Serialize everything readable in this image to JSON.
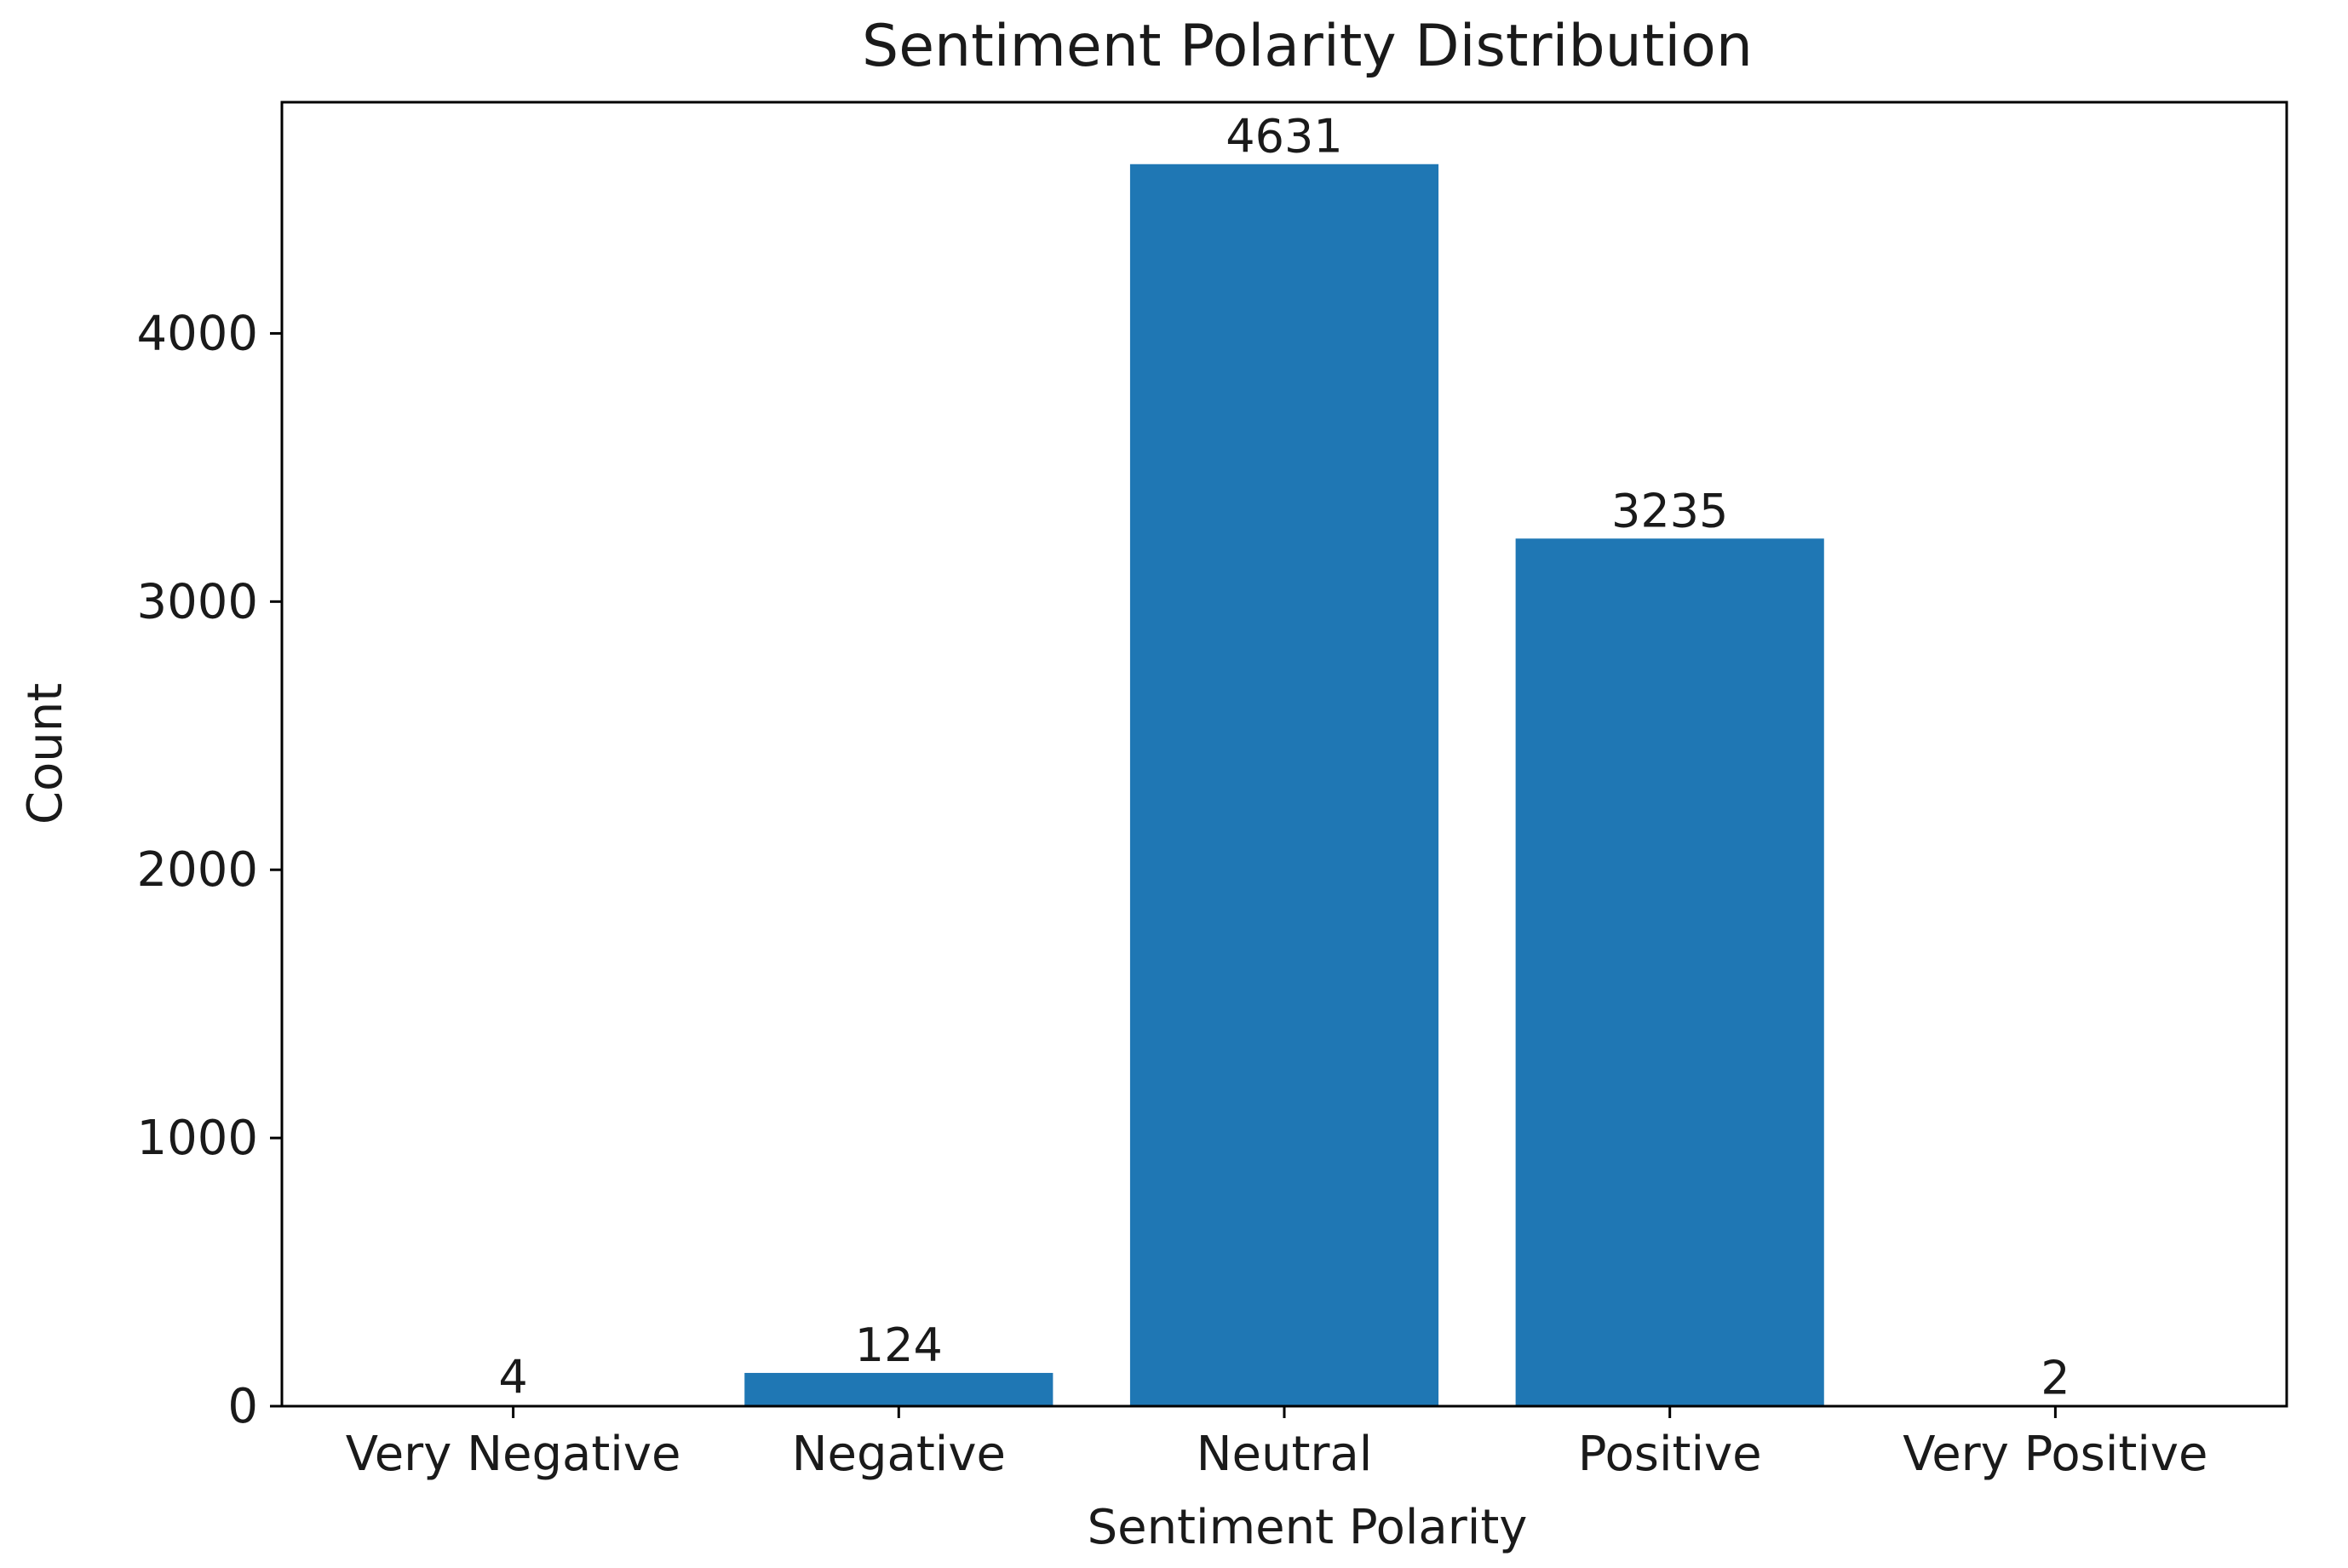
{
  "chart_data": {
    "type": "bar",
    "title": "Sentiment Polarity Distribution",
    "xlabel": "Sentiment Polarity",
    "ylabel": "Count",
    "categories": [
      "Very Negative",
      "Negative",
      "Neutral",
      "Positive",
      "Very Positive"
    ],
    "values": [
      4,
      124,
      4631,
      3235,
      2
    ],
    "data_labels": [
      "4",
      "124",
      "4631",
      "3235",
      "2"
    ],
    "ylim": [
      0,
      4862
    ],
    "yticks": [
      0,
      1000,
      2000,
      3000,
      4000
    ],
    "ytick_labels": [
      "0",
      "1000",
      "2000",
      "3000",
      "4000"
    ],
    "grid": false,
    "legend": "none",
    "bar_color": "#1f77b4"
  }
}
